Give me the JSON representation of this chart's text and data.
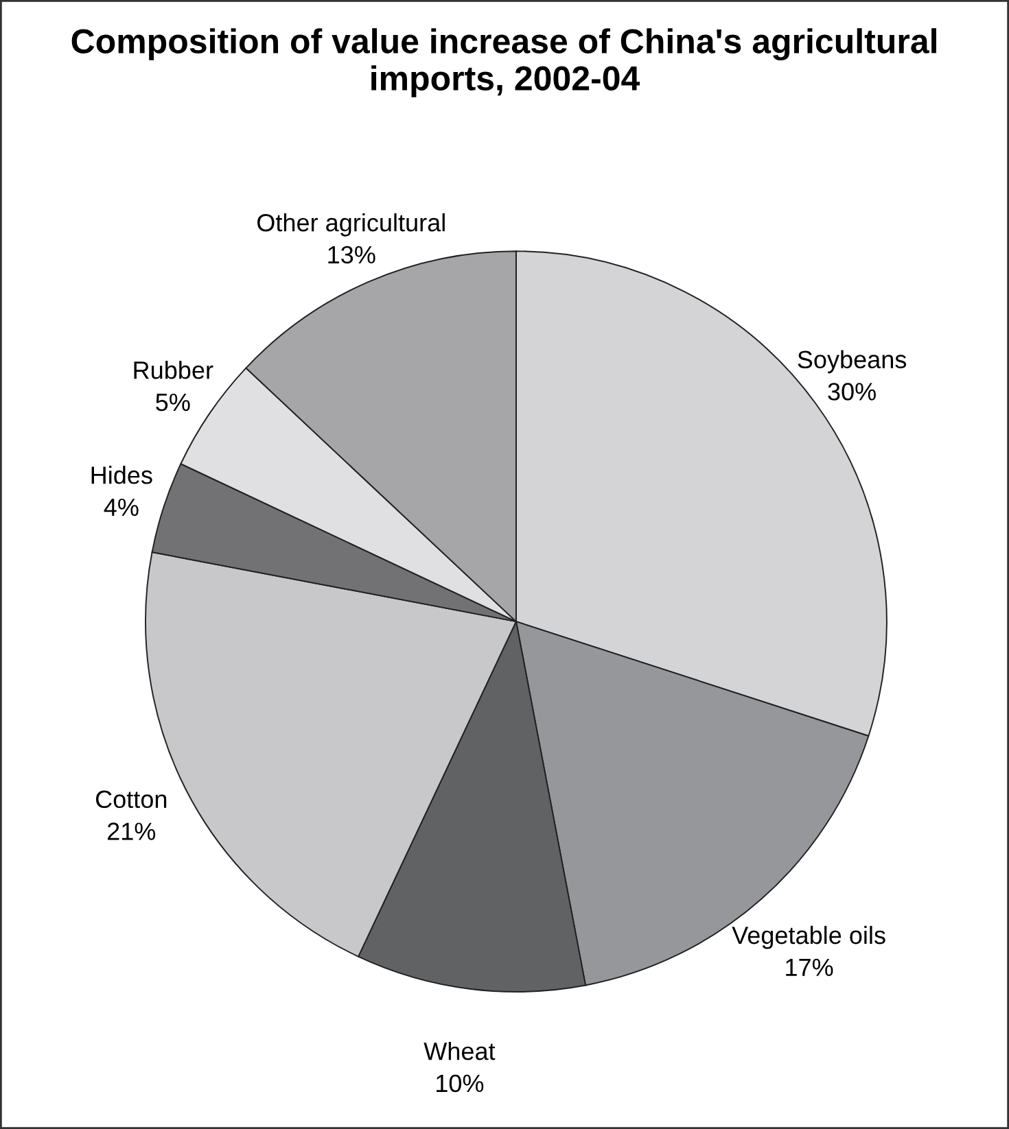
{
  "chart_data": {
    "type": "pie",
    "title": "Composition of value increase of China's agricultural imports, 2002-04",
    "categories": [
      "Soybeans",
      "Vegetable oils",
      "Wheat",
      "Cotton",
      "Hides",
      "Rubber",
      "Other agricultural"
    ],
    "values": [
      30,
      17,
      10,
      21,
      4,
      5,
      13
    ],
    "colors": [
      "#d4d4d6",
      "#96979a",
      "#616264",
      "#c8c8ca",
      "#727274",
      "#e0e0e2",
      "#a6a6a8"
    ],
    "value_labels": [
      "30%",
      "17%",
      "10%",
      "21%",
      "4%",
      "5%",
      "13%"
    ]
  }
}
